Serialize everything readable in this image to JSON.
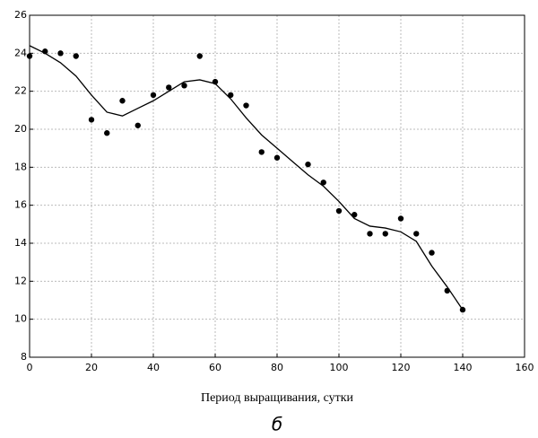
{
  "chart_data": {
    "type": "scatter",
    "xlabel": "Период выращивания, сутки",
    "caption": "б",
    "xlim": [
      0,
      160
    ],
    "xticks": [
      0,
      20,
      40,
      60,
      80,
      100,
      120,
      140,
      160
    ],
    "ylim": [
      8,
      26
    ],
    "yticks": [
      8,
      10,
      12,
      14,
      16,
      18,
      20,
      22,
      24,
      26
    ],
    "grid": true,
    "series": [
      {
        "mode": "markers",
        "color": "#000000",
        "x": [
          0,
          5,
          10,
          15,
          20,
          25,
          30,
          35,
          40,
          45,
          50,
          55,
          60,
          65,
          70,
          75,
          80,
          90,
          95,
          100,
          105,
          110,
          115,
          120,
          125,
          130,
          135,
          140
        ],
        "values": [
          23.85,
          24.1,
          24.0,
          23.85,
          20.5,
          19.8,
          21.5,
          20.2,
          21.8,
          22.2,
          22.3,
          23.85,
          22.5,
          21.8,
          21.25,
          18.8,
          18.5,
          18.15,
          17.2,
          15.7,
          15.5,
          14.5,
          14.5,
          15.3,
          14.5,
          13.5,
          11.5,
          10.5
        ]
      },
      {
        "mode": "line",
        "color": "#000000",
        "x": [
          0,
          5,
          10,
          15,
          20,
          25,
          30,
          35,
          40,
          45,
          50,
          55,
          60,
          65,
          70,
          75,
          80,
          85,
          90,
          95,
          100,
          105,
          110,
          115,
          120,
          125,
          130,
          135,
          140
        ],
        "values": [
          24.4,
          24.0,
          23.5,
          22.8,
          21.8,
          20.9,
          20.7,
          21.1,
          21.5,
          22.0,
          22.5,
          22.6,
          22.4,
          21.6,
          20.6,
          19.7,
          19.0,
          18.3,
          17.6,
          17.0,
          16.2,
          15.3,
          14.9,
          14.8,
          14.6,
          14.1,
          12.8,
          11.7,
          10.5
        ]
      }
    ]
  }
}
